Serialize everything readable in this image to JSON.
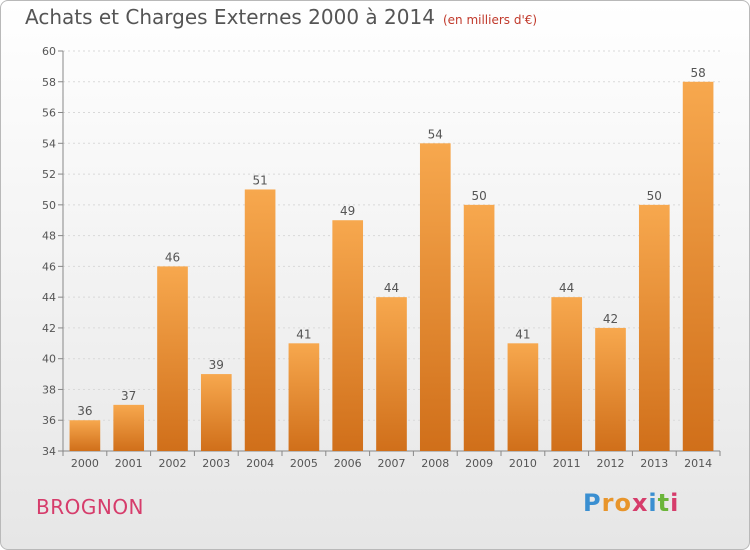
{
  "title": "Achats et Charges Externes 2000 à 2014",
  "unit": "(en milliers d'€)",
  "commune": "BROGNON",
  "brand": "Proxiti",
  "colors": {
    "bar_top": "#f7a84e",
    "bar_bottom": "#d06f1a",
    "title": "#555555",
    "commune": "#d63c6b"
  },
  "chart_data": {
    "type": "bar",
    "categories": [
      "2000",
      "2001",
      "2002",
      "2003",
      "2004",
      "2005",
      "2006",
      "2007",
      "2008",
      "2009",
      "2010",
      "2011",
      "2012",
      "2013",
      "2014"
    ],
    "values": [
      36,
      37,
      46,
      39,
      51,
      41,
      49,
      44,
      54,
      50,
      41,
      44,
      42,
      50,
      58
    ],
    "ylim": [
      34,
      60
    ],
    "yticks": [
      34,
      36,
      38,
      40,
      42,
      44,
      46,
      48,
      50,
      52,
      54,
      56,
      58,
      60
    ],
    "grid": true,
    "data_labels": true
  }
}
